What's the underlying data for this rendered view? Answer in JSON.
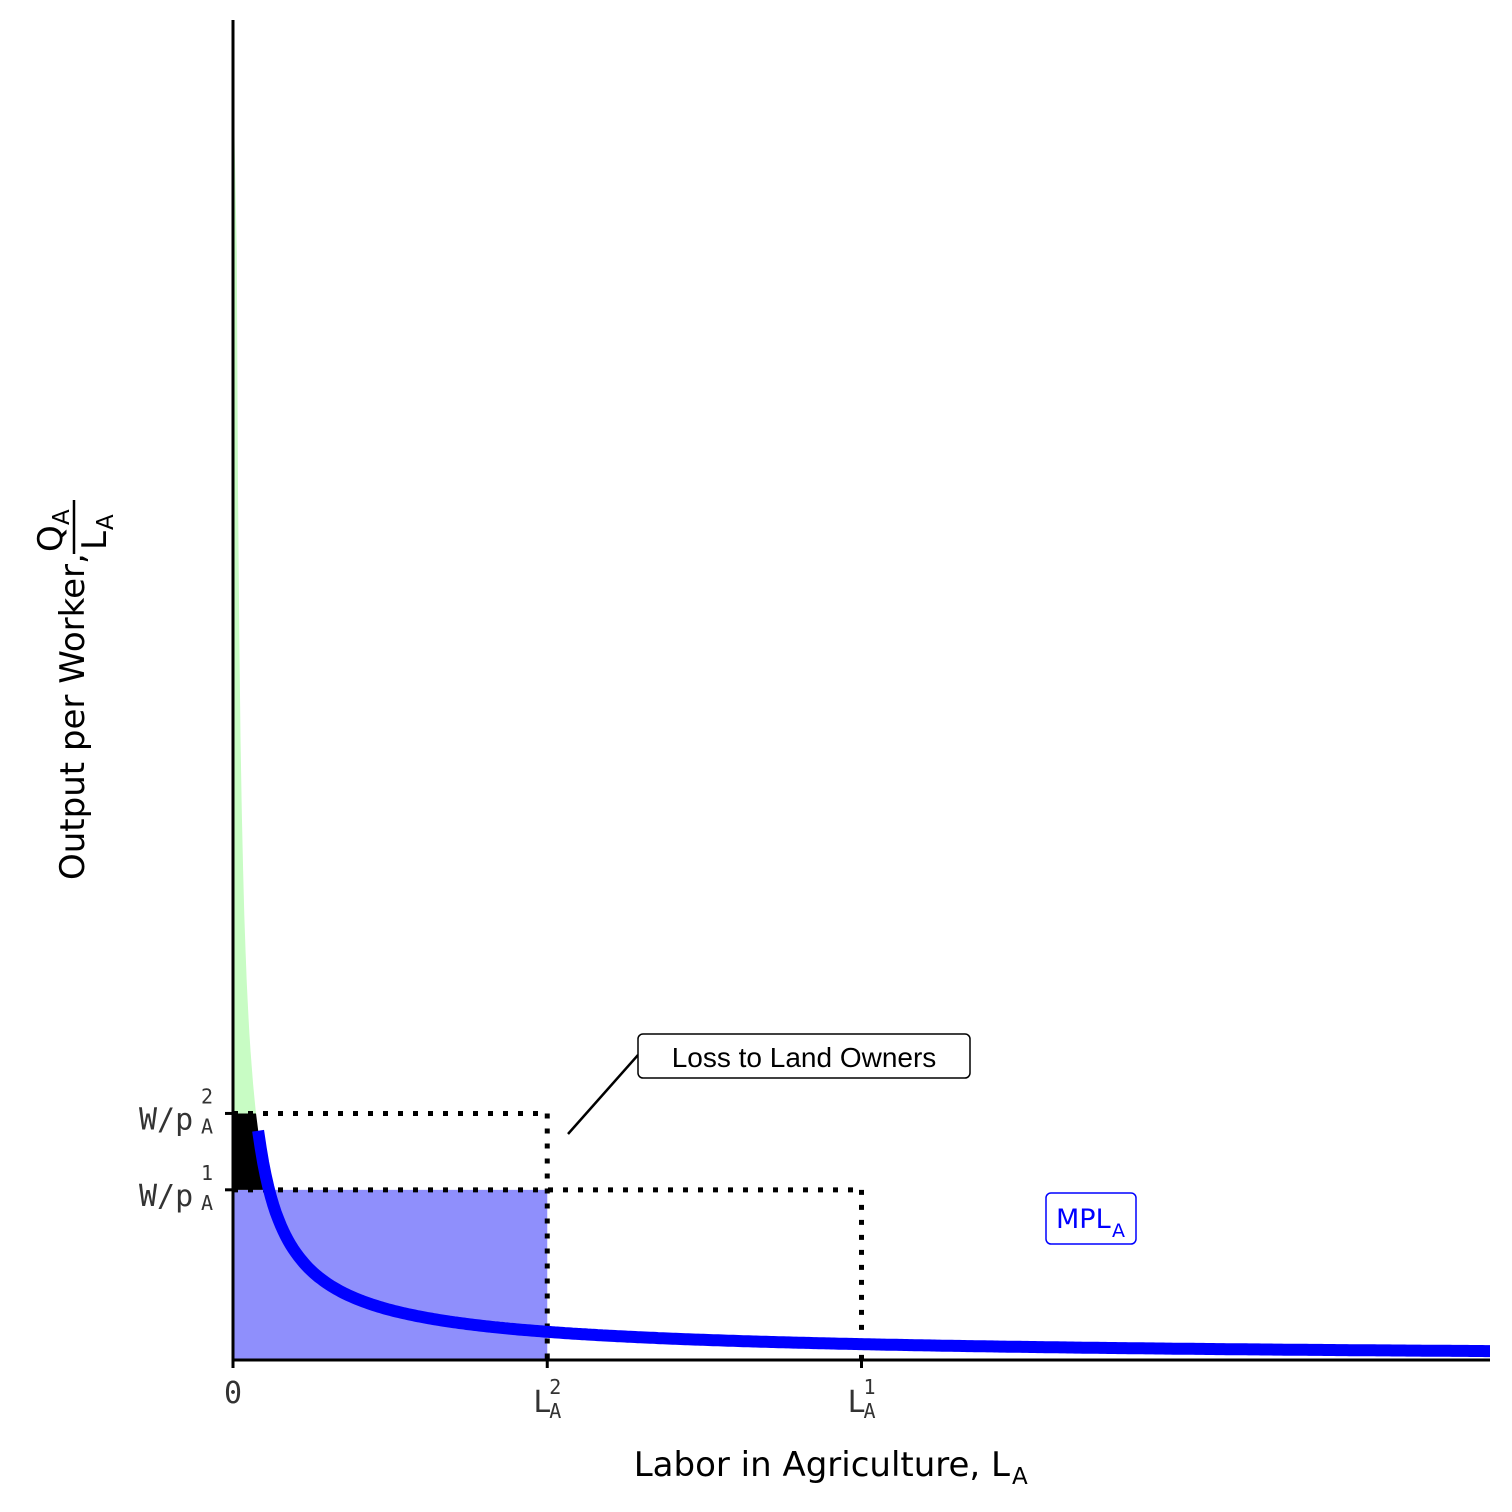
{
  "chart_data": {
    "type": "line",
    "title": "",
    "xlabel": {
      "main": "Labor in Agriculture, L",
      "sub": "A"
    },
    "ylabel": {
      "main": "Output per Worker, ",
      "numerator": "Q",
      "numerator_sub": "A",
      "denominator": "L",
      "denominator_sub": "A"
    },
    "xlim": [
      0,
      10
    ],
    "ylim": [
      0,
      10
    ],
    "grid": false,
    "curve": {
      "name": "MPL",
      "name_sub": "A",
      "color": "#0000ff",
      "function": "y = 0.45 / x^0.83",
      "x_from": 0.2,
      "x_to": 10
    },
    "x_ticks": [
      {
        "value": 0,
        "label": "0",
        "sup": "",
        "sub": ""
      },
      {
        "value": 2.5,
        "label": "L",
        "sup": "2",
        "sub": "A"
      },
      {
        "value": 5.0,
        "label": "L",
        "sup": "1",
        "sub": "A"
      }
    ],
    "y_ticks": [
      {
        "value": 1.27,
        "label": "W/p",
        "sup": "1",
        "sub": "A"
      },
      {
        "value": 1.84,
        "label": "W/p",
        "sup": "2",
        "sub": "A"
      }
    ],
    "regions": [
      {
        "name": "land-owner-surplus",
        "color": "#c8fcc4"
      },
      {
        "name": "loss-region",
        "color": "#000000"
      },
      {
        "name": "wage-bill",
        "color": "#8f8ffc"
      }
    ],
    "annotation": {
      "text": "Loss to Land Owners"
    }
  },
  "colors": {
    "curve": "#0000ff",
    "green": "#c8fcc4",
    "purple": "#8f8ffc",
    "black": "#000000"
  }
}
